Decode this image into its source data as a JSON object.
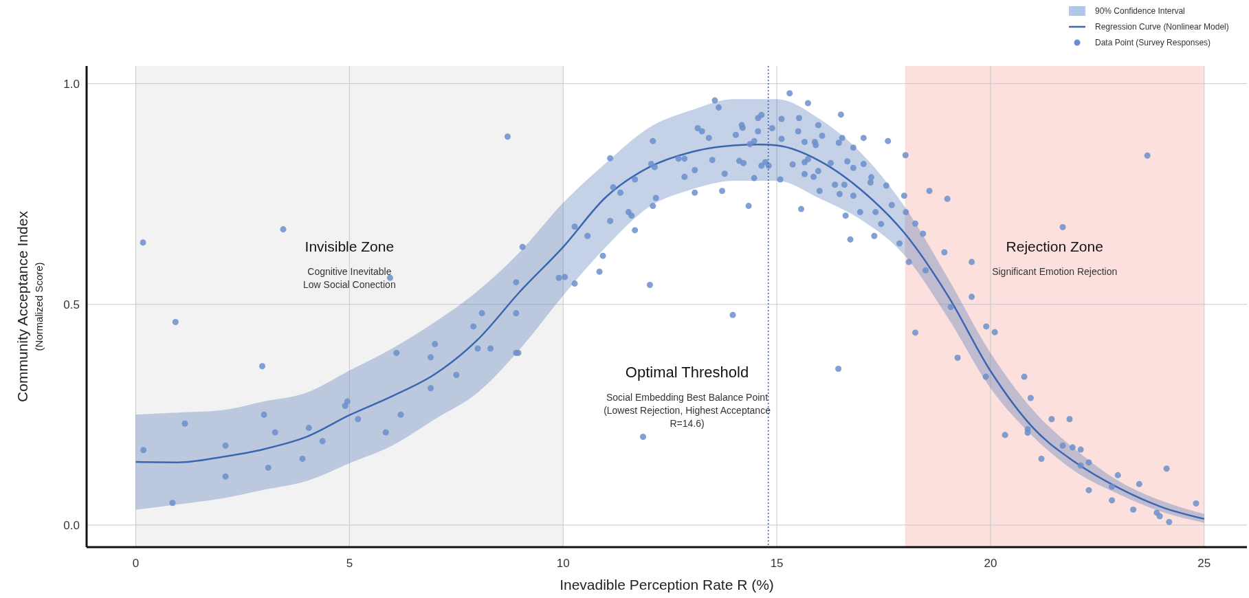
{
  "chart_data": {
    "type": "scatter",
    "xlabel": "Inevadible Perception Rate R (%)",
    "ylabel": "Community Acceptance Index\n(Normalized Score)",
    "xlim": [
      -1.15,
      26
    ],
    "ylim": [
      -0.05,
      1.04
    ],
    "xticks": [
      0,
      5,
      10,
      15,
      20,
      25
    ],
    "yticks": [
      {
        "value": 0,
        "label": "0.0"
      },
      {
        "value": 0.5,
        "label": "0.5"
      },
      {
        "value": 1,
        "label": "1.0"
      }
    ],
    "grid": true,
    "legend": "top right",
    "bands": [
      {
        "axis": "x",
        "from": 0,
        "to": 10,
        "label": "Invisible Zone",
        "color": "#f2f2f2"
      },
      {
        "axis": "x",
        "from": 18,
        "to": 25,
        "label": "Rejection Zone",
        "color": "#fbe0de"
      }
    ],
    "ref_lines": [
      {
        "axis": "x",
        "value": 14.8,
        "label": "Optimal Threshold",
        "color": "#3a66b0",
        "line_style": "dotted"
      }
    ],
    "annotations": [
      "Cognitive Inevitable\nLow Social Conection",
      "Significant Emotion Rejection",
      "Social Embedding Best Balance Point\n(Lowest Rejection, Highest Acceptance\nR=14.6)"
    ],
    "series": [
      {
        "type": "area",
        "name": "90% Confidence Interval",
        "color": "#b4c6e7"
      },
      {
        "type": "line",
        "name": "Regression Curve (Nonlinear Model)",
        "color": "#3a66b0",
        "x": [
          0,
          1,
          2,
          3,
          4,
          5,
          6,
          7,
          8,
          9,
          10,
          11,
          12,
          13,
          14,
          14.6,
          15,
          16,
          17,
          18,
          19,
          20,
          21,
          22,
          23,
          24,
          25
        ],
        "values": [
          0.143,
          0.142,
          0.154,
          0.172,
          0.2,
          0.249,
          0.292,
          0.342,
          0.42,
          0.53,
          0.63,
          0.743,
          0.81,
          0.845,
          0.86,
          0.862,
          0.86,
          0.825,
          0.757,
          0.66,
          0.52,
          0.349,
          0.22,
          0.141,
          0.084,
          0.041,
          0.014
        ],
        "lower": [
          0.035,
          0.047,
          0.06,
          0.08,
          0.1,
          0.14,
          0.18,
          0.24,
          0.3,
          0.4,
          0.52,
          0.63,
          0.72,
          0.76,
          0.78,
          0.78,
          0.78,
          0.74,
          0.69,
          0.61,
          0.47,
          0.31,
          0.2,
          0.12,
          0.07,
          0.03,
          0.005
        ],
        "upper": [
          0.25,
          0.255,
          0.26,
          0.28,
          0.3,
          0.35,
          0.4,
          0.46,
          0.53,
          0.62,
          0.73,
          0.82,
          0.9,
          0.94,
          0.965,
          0.965,
          0.965,
          0.92,
          0.84,
          0.72,
          0.56,
          0.39,
          0.26,
          0.17,
          0.1,
          0.055,
          0.025
        ]
      },
      {
        "name": "Data Point (Survey Responses)",
        "marker": "circle",
        "color": "#6b8fcb",
        "x": [
          0.17,
          0.18,
          0.86,
          0.93,
          1.15,
          2.1,
          2.1,
          2.96,
          3.0,
          3.1,
          3.26,
          3.45,
          3.9,
          4.05,
          4.37,
          4.9,
          4.95,
          5.2,
          5.85,
          5.95,
          6.1,
          6.2,
          6.9,
          7.0,
          6.9,
          7.5,
          7.9,
          8.1,
          8.0,
          8.3,
          8.7,
          8.9,
          8.9,
          8.9,
          8.95,
          9.05,
          9.9,
          11.87,
          10.04,
          10.27,
          10.27,
          10.57,
          10.85,
          10.93,
          11.1,
          11.1,
          11.17,
          11.34,
          11.53,
          11.6,
          11.68,
          11.68,
          12.03,
          12.1,
          12.06,
          12.14,
          12.1,
          12.17,
          12.7,
          12.84,
          12.84,
          13.08,
          13.08,
          13.15,
          13.25,
          13.41,
          13.49,
          13.55,
          13.64,
          13.72,
          13.78,
          13.97,
          14.04,
          14.12,
          14.2,
          14.22,
          14.18,
          14.34,
          14.37,
          14.47,
          14.47,
          14.56,
          14.56,
          14.64,
          14.64,
          14.73,
          14.81,
          14.89,
          15.08,
          15.11,
          15.11,
          15.3,
          15.37,
          15.5,
          15.52,
          15.57,
          15.65,
          15.65,
          15.65,
          15.73,
          15.73,
          15.86,
          15.89,
          15.91,
          15.97,
          15.97,
          16.0,
          16.06,
          16.26,
          16.36,
          16.44,
          16.45,
          16.47,
          16.5,
          16.53,
          16.58,
          16.61,
          16.65,
          16.72,
          16.79,
          16.79,
          16.79,
          16.95,
          17.03,
          17.03,
          17.19,
          17.21,
          17.28,
          17.31,
          17.44,
          17.56,
          17.6,
          17.69,
          17.87,
          17.98,
          18.01,
          18.02,
          18.09,
          18.24,
          18.24,
          18.42,
          18.48,
          18.57,
          18.92,
          18.99,
          19.07,
          19.23,
          19.56,
          19.56,
          21.69,
          23.67,
          19.9,
          20.1,
          19.89,
          20.34,
          20.79,
          20.94,
          20.87,
          20.87,
          21.19,
          21.43,
          21.85,
          21.69,
          21.92,
          22.11,
          22.11,
          22.3,
          22.3,
          22.98,
          22.84,
          22.84,
          23.34,
          23.48,
          23.89,
          23.96,
          24.12,
          24.18,
          24.81
        ],
        "values": [
          0.64,
          0.17,
          0.05,
          0.46,
          0.23,
          0.18,
          0.11,
          0.36,
          0.25,
          0.13,
          0.21,
          0.67,
          0.15,
          0.22,
          0.19,
          0.27,
          0.28,
          0.24,
          0.21,
          0.56,
          0.39,
          0.25,
          0.38,
          0.41,
          0.31,
          0.34,
          0.45,
          0.48,
          0.4,
          0.4,
          0.88,
          0.55,
          0.48,
          0.39,
          0.39,
          0.63,
          0.56,
          0.2,
          0.562,
          0.547,
          0.676,
          0.655,
          0.574,
          0.61,
          0.831,
          0.689,
          0.765,
          0.753,
          0.709,
          0.701,
          0.783,
          0.668,
          0.544,
          0.87,
          0.818,
          0.811,
          0.723,
          0.741,
          0.83,
          0.83,
          0.789,
          0.804,
          0.753,
          0.899,
          0.892,
          0.877,
          0.827,
          0.962,
          0.946,
          0.757,
          0.796,
          0.476,
          0.884,
          0.825,
          0.9,
          0.82,
          0.906,
          0.723,
          0.863,
          0.87,
          0.786,
          0.892,
          0.922,
          0.929,
          0.814,
          0.822,
          0.814,
          0.899,
          0.783,
          0.92,
          0.875,
          0.978,
          0.817,
          0.892,
          0.922,
          0.716,
          0.868,
          0.822,
          0.795,
          0.956,
          0.829,
          0.789,
          0.868,
          0.861,
          0.906,
          0.802,
          0.757,
          0.882,
          0.82,
          0.771,
          0.354,
          0.866,
          0.75,
          0.93,
          0.877,
          0.771,
          0.701,
          0.824,
          0.647,
          0.855,
          0.809,
          0.746,
          0.709,
          0.877,
          0.818,
          0.776,
          0.788,
          0.655,
          0.709,
          0.682,
          0.769,
          0.87,
          0.725,
          0.638,
          0.746,
          0.838,
          0.709,
          0.596,
          0.683,
          0.436,
          0.66,
          0.577,
          0.757,
          0.618,
          0.739,
          0.494,
          0.379,
          0.596,
          0.517,
          0.675,
          0.837,
          0.45,
          0.437,
          0.336,
          0.204,
          0.336,
          0.288,
          0.217,
          0.209,
          0.15,
          0.24,
          0.24,
          0.18,
          0.176,
          0.171,
          0.135,
          0.142,
          0.079,
          0.113,
          0.087,
          0.056,
          0.035,
          0.093,
          0.028,
          0.02,
          0.128,
          0.007,
          0.049
        ]
      }
    ]
  }
}
